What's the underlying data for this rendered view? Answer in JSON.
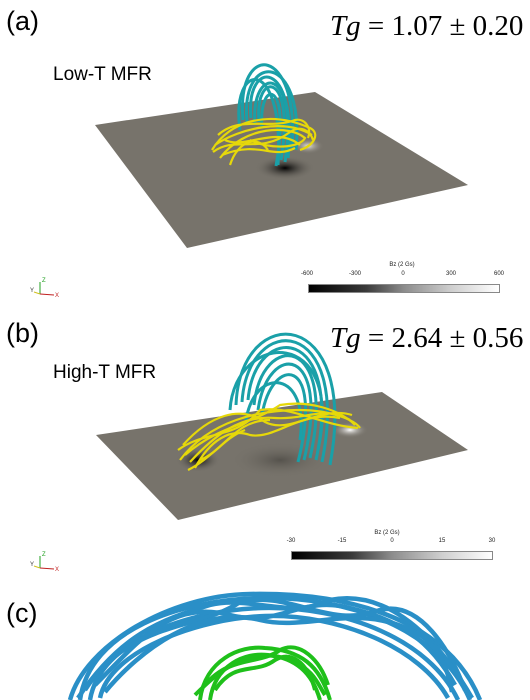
{
  "panel_a": {
    "letter": "(a)",
    "tg_symbol": "Tg",
    "tg_value": " = 1.07 ± 0.20",
    "label": "Low-T MFR",
    "colorbar_title": "Bz (2 Gs)",
    "colorbar_ticks": [
      "-600",
      "-300",
      "0",
      "300",
      "600"
    ]
  },
  "panel_b": {
    "letter": "(b)",
    "tg_symbol": "Tg",
    "tg_value": " = 2.64 ± 0.56",
    "label": "High-T MFR",
    "colorbar_title": "Bz (2 Gs)",
    "colorbar_ticks": [
      "-30",
      "-15",
      "0",
      "15",
      "30"
    ]
  },
  "panel_c": {
    "letter": "(c)"
  },
  "axes_labels": {
    "z": "Z",
    "y": "Y",
    "x": "X"
  },
  "colors": {
    "plane": "#77736b",
    "yellow_lines": "#e6d80a",
    "cyan_lines": "#1aa0a8",
    "blue_lines": "#2a8fc7",
    "green_lines": "#1fc01a"
  }
}
